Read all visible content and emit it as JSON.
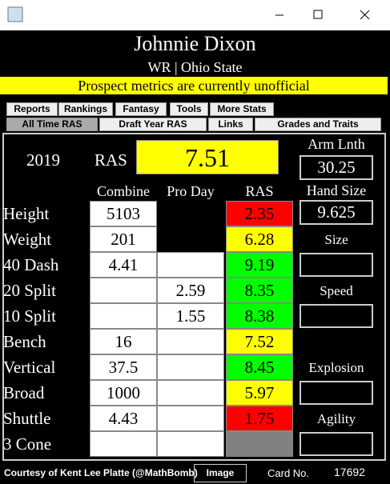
{
  "header": {
    "name": "Johnnie Dixon",
    "subtitle": "WR | Ohio State",
    "banner": "Prospect metrics are currently unofficial"
  },
  "tabs": {
    "row1": [
      "Reports",
      "Rankings",
      "Fantasy",
      "Tools",
      "More Stats"
    ],
    "row2": [
      "All Time RAS",
      "Draft Year RAS",
      "Links",
      "Grades and Traits"
    ],
    "selected": "All Time RAS"
  },
  "summary": {
    "year": "2019",
    "ras_label": "RAS",
    "ras_score": "7.51",
    "arm_length_label": "Arm Lnth",
    "arm_length": "30.25",
    "hand_size_label": "Hand Size",
    "hand_size": "9.625"
  },
  "table": {
    "columns": [
      "Combine",
      "Pro Day",
      "RAS"
    ],
    "rows": [
      {
        "label": "Height",
        "combine": "5103",
        "pro_day": null,
        "pro_day_color": "#000000",
        "ras": "2.35",
        "ras_color": "#ff0000"
      },
      {
        "label": "Weight",
        "combine": "201",
        "pro_day": null,
        "pro_day_color": "#000000",
        "ras": "6.28",
        "ras_color": "#ffff00"
      },
      {
        "label": "40 Dash",
        "combine": "4.41",
        "pro_day": null,
        "pro_day_color": "#ffffff",
        "ras": "9.19",
        "ras_color": "#00ff00"
      },
      {
        "label": "20 Split",
        "combine": null,
        "pro_day": "2.59",
        "pro_day_color": "#ffffff",
        "ras": "8.35",
        "ras_color": "#00ff00"
      },
      {
        "label": "10 Split",
        "combine": null,
        "pro_day": "1.55",
        "pro_day_color": "#ffffff",
        "ras": "8.38",
        "ras_color": "#00ff00"
      },
      {
        "label": "Bench",
        "combine": "16",
        "pro_day": null,
        "pro_day_color": "#ffffff",
        "ras": "7.52",
        "ras_color": "#ffff00"
      },
      {
        "label": "Vertical",
        "combine": "37.5",
        "pro_day": null,
        "pro_day_color": "#ffffff",
        "ras": "8.45",
        "ras_color": "#00ff00"
      },
      {
        "label": "Broad",
        "combine": "1000",
        "pro_day": null,
        "pro_day_color": "#ffffff",
        "ras": "5.97",
        "ras_color": "#ffff00"
      },
      {
        "label": "Shuttle",
        "combine": "4.43",
        "pro_day": null,
        "pro_day_color": "#ffffff",
        "ras": "1.75",
        "ras_color": "#ff0000"
      },
      {
        "label": "3 Cone",
        "combine": null,
        "pro_day": null,
        "pro_day_color": "#ffffff",
        "ras": null,
        "ras_color": "#808080"
      }
    ]
  },
  "grades": [
    "Size",
    "Speed",
    "Explosion",
    "Agility"
  ],
  "footer": {
    "credit": "Courtesy of Kent Lee Platte (@MathBomb)",
    "button": "Image",
    "card_label": "Card No.",
    "card_number": "17692"
  }
}
